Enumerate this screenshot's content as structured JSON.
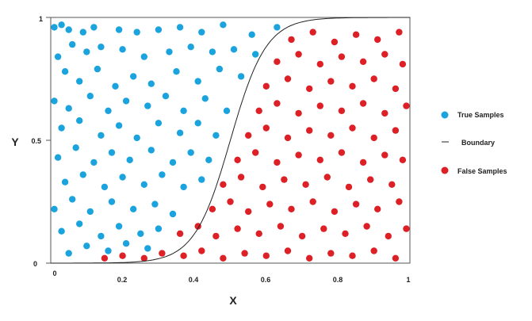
{
  "chart_data": {
    "type": "scatter",
    "title": "",
    "xlabel": "X",
    "ylabel": "Y",
    "xlim": [
      0,
      1
    ],
    "ylim": [
      0,
      1
    ],
    "grid": false,
    "legend_position": "right",
    "x_tick_labels": [
      "0",
      "0.2",
      "0.4",
      "0.6",
      "0.8",
      "1"
    ],
    "x_ticks": [
      0,
      0.2,
      0.4,
      0.6,
      0.8,
      1
    ],
    "y_tick_labels": [
      "0",
      "0.5",
      "1"
    ],
    "y_ticks": [
      0,
      0.5,
      1
    ],
    "legend": {
      "true_label": "True Samples",
      "boundary_label": "Boundary",
      "false_label": "False Samples"
    },
    "colors": {
      "true": "#1aa3dd",
      "false": "#dd1f26",
      "boundary": "#222222",
      "frame": "#555555"
    },
    "boundary": {
      "formula": "logistic",
      "midpoint": 0.5,
      "steepness": 20
    },
    "series": [
      {
        "name": "True Samples",
        "points": [
          [
            0.01,
            0.96
          ],
          [
            0.03,
            0.97
          ],
          [
            0.05,
            0.95
          ],
          [
            0.09,
            0.94
          ],
          [
            0.12,
            0.96
          ],
          [
            0.19,
            0.95
          ],
          [
            0.24,
            0.94
          ],
          [
            0.3,
            0.95
          ],
          [
            0.36,
            0.96
          ],
          [
            0.42,
            0.94
          ],
          [
            0.48,
            0.97
          ],
          [
            0.56,
            0.93
          ],
          [
            0.63,
            0.96
          ],
          [
            0.02,
            0.84
          ],
          [
            0.06,
            0.89
          ],
          [
            0.1,
            0.86
          ],
          [
            0.14,
            0.88
          ],
          [
            0.2,
            0.87
          ],
          [
            0.26,
            0.84
          ],
          [
            0.33,
            0.86
          ],
          [
            0.39,
            0.88
          ],
          [
            0.45,
            0.86
          ],
          [
            0.51,
            0.87
          ],
          [
            0.57,
            0.85
          ],
          [
            0.04,
            0.78
          ],
          [
            0.08,
            0.74
          ],
          [
            0.13,
            0.79
          ],
          [
            0.18,
            0.72
          ],
          [
            0.23,
            0.76
          ],
          [
            0.28,
            0.73
          ],
          [
            0.35,
            0.78
          ],
          [
            0.41,
            0.74
          ],
          [
            0.47,
            0.79
          ],
          [
            0.53,
            0.76
          ],
          [
            0.01,
            0.66
          ],
          [
            0.05,
            0.63
          ],
          [
            0.11,
            0.68
          ],
          [
            0.16,
            0.62
          ],
          [
            0.21,
            0.66
          ],
          [
            0.27,
            0.64
          ],
          [
            0.32,
            0.68
          ],
          [
            0.37,
            0.62
          ],
          [
            0.43,
            0.67
          ],
          [
            0.49,
            0.62
          ],
          [
            0.03,
            0.55
          ],
          [
            0.08,
            0.58
          ],
          [
            0.14,
            0.52
          ],
          [
            0.19,
            0.56
          ],
          [
            0.24,
            0.51
          ],
          [
            0.3,
            0.57
          ],
          [
            0.36,
            0.53
          ],
          [
            0.41,
            0.57
          ],
          [
            0.46,
            0.52
          ],
          [
            0.02,
            0.43
          ],
          [
            0.07,
            0.47
          ],
          [
            0.12,
            0.41
          ],
          [
            0.17,
            0.45
          ],
          [
            0.22,
            0.42
          ],
          [
            0.28,
            0.46
          ],
          [
            0.34,
            0.41
          ],
          [
            0.39,
            0.45
          ],
          [
            0.44,
            0.42
          ],
          [
            0.04,
            0.33
          ],
          [
            0.09,
            0.36
          ],
          [
            0.15,
            0.31
          ],
          [
            0.2,
            0.35
          ],
          [
            0.26,
            0.32
          ],
          [
            0.31,
            0.36
          ],
          [
            0.37,
            0.31
          ],
          [
            0.42,
            0.34
          ],
          [
            0.01,
            0.22
          ],
          [
            0.06,
            0.26
          ],
          [
            0.11,
            0.21
          ],
          [
            0.17,
            0.25
          ],
          [
            0.23,
            0.22
          ],
          [
            0.29,
            0.24
          ],
          [
            0.34,
            0.2
          ],
          [
            0.03,
            0.13
          ],
          [
            0.08,
            0.16
          ],
          [
            0.14,
            0.11
          ],
          [
            0.19,
            0.15
          ],
          [
            0.25,
            0.12
          ],
          [
            0.3,
            0.14
          ],
          [
            0.05,
            0.04
          ],
          [
            0.1,
            0.07
          ],
          [
            0.16,
            0.05
          ],
          [
            0.21,
            0.08
          ],
          [
            0.27,
            0.06
          ]
        ]
      },
      {
        "name": "False Samples",
        "points": [
          [
            0.15,
            0.02
          ],
          [
            0.2,
            0.03
          ],
          [
            0.26,
            0.02
          ],
          [
            0.31,
            0.04
          ],
          [
            0.37,
            0.03
          ],
          [
            0.42,
            0.05
          ],
          [
            0.48,
            0.02
          ],
          [
            0.54,
            0.04
          ],
          [
            0.6,
            0.03
          ],
          [
            0.66,
            0.05
          ],
          [
            0.72,
            0.02
          ],
          [
            0.78,
            0.04
          ],
          [
            0.84,
            0.03
          ],
          [
            0.9,
            0.05
          ],
          [
            0.96,
            0.02
          ],
          [
            0.36,
            0.12
          ],
          [
            0.41,
            0.15
          ],
          [
            0.46,
            0.11
          ],
          [
            0.52,
            0.14
          ],
          [
            0.58,
            0.12
          ],
          [
            0.64,
            0.15
          ],
          [
            0.7,
            0.11
          ],
          [
            0.76,
            0.14
          ],
          [
            0.82,
            0.12
          ],
          [
            0.88,
            0.15
          ],
          [
            0.94,
            0.11
          ],
          [
            0.99,
            0.14
          ],
          [
            0.45,
            0.22
          ],
          [
            0.5,
            0.25
          ],
          [
            0.55,
            0.21
          ],
          [
            0.61,
            0.24
          ],
          [
            0.67,
            0.22
          ],
          [
            0.73,
            0.25
          ],
          [
            0.79,
            0.21
          ],
          [
            0.85,
            0.24
          ],
          [
            0.91,
            0.22
          ],
          [
            0.97,
            0.25
          ],
          [
            0.48,
            0.32
          ],
          [
            0.53,
            0.35
          ],
          [
            0.59,
            0.31
          ],
          [
            0.65,
            0.34
          ],
          [
            0.71,
            0.32
          ],
          [
            0.77,
            0.35
          ],
          [
            0.83,
            0.31
          ],
          [
            0.89,
            0.34
          ],
          [
            0.95,
            0.32
          ],
          [
            0.52,
            0.42
          ],
          [
            0.57,
            0.45
          ],
          [
            0.63,
            0.41
          ],
          [
            0.69,
            0.44
          ],
          [
            0.75,
            0.42
          ],
          [
            0.81,
            0.45
          ],
          [
            0.87,
            0.41
          ],
          [
            0.93,
            0.44
          ],
          [
            0.98,
            0.42
          ],
          [
            0.55,
            0.52
          ],
          [
            0.6,
            0.55
          ],
          [
            0.66,
            0.51
          ],
          [
            0.72,
            0.54
          ],
          [
            0.78,
            0.52
          ],
          [
            0.84,
            0.55
          ],
          [
            0.9,
            0.51
          ],
          [
            0.96,
            0.54
          ],
          [
            0.58,
            0.62
          ],
          [
            0.63,
            0.65
          ],
          [
            0.69,
            0.61
          ],
          [
            0.75,
            0.64
          ],
          [
            0.81,
            0.62
          ],
          [
            0.87,
            0.65
          ],
          [
            0.93,
            0.61
          ],
          [
            0.99,
            0.64
          ],
          [
            0.6,
            0.72
          ],
          [
            0.66,
            0.75
          ],
          [
            0.72,
            0.71
          ],
          [
            0.78,
            0.74
          ],
          [
            0.84,
            0.72
          ],
          [
            0.9,
            0.75
          ],
          [
            0.96,
            0.71
          ],
          [
            0.63,
            0.82
          ],
          [
            0.69,
            0.85
          ],
          [
            0.75,
            0.81
          ],
          [
            0.81,
            0.84
          ],
          [
            0.87,
            0.82
          ],
          [
            0.93,
            0.85
          ],
          [
            0.98,
            0.81
          ],
          [
            0.67,
            0.91
          ],
          [
            0.73,
            0.94
          ],
          [
            0.79,
            0.9
          ],
          [
            0.85,
            0.93
          ],
          [
            0.91,
            0.91
          ],
          [
            0.97,
            0.94
          ]
        ]
      }
    ]
  }
}
